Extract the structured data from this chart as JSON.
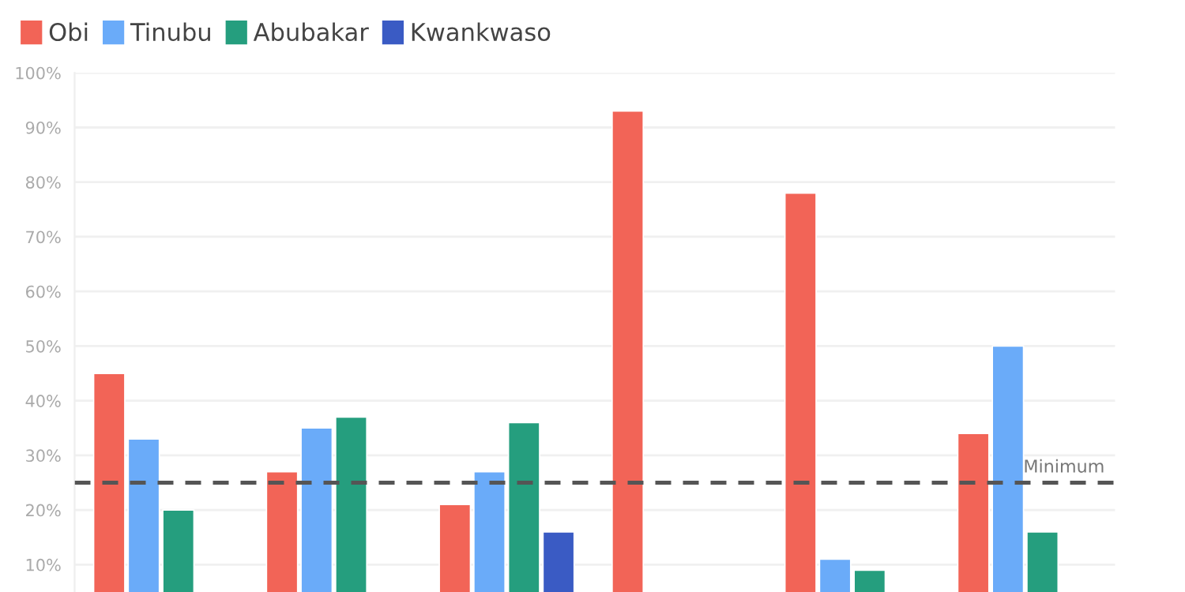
{
  "chart_data": {
    "type": "bar",
    "categories": [
      null,
      null,
      null,
      null,
      null,
      null
    ],
    "series": [
      {
        "name": "Obi",
        "color": "#f26457",
        "values": [
          45,
          27,
          21,
          93,
          78,
          34
        ]
      },
      {
        "name": "Tinubu",
        "color": "#6aabf9",
        "values": [
          33,
          35,
          27,
          null,
          11,
          50
        ]
      },
      {
        "name": "Abubakar",
        "color": "#259e7e",
        "values": [
          20,
          37,
          36,
          null,
          9,
          16
        ]
      },
      {
        "name": "Kwankwaso",
        "color": "#3a5bc4",
        "values": [
          null,
          null,
          16,
          null,
          null,
          null
        ]
      }
    ],
    "ylim": [
      5,
      100
    ],
    "yticks": [
      {
        "value": 10,
        "label": "10%"
      },
      {
        "value": 20,
        "label": "20%"
      },
      {
        "value": 30,
        "label": "30%"
      },
      {
        "value": 40,
        "label": "40%"
      },
      {
        "value": 50,
        "label": "50%"
      },
      {
        "value": 60,
        "label": "60%"
      },
      {
        "value": 70,
        "label": "70%"
      },
      {
        "value": 80,
        "label": "80%"
      },
      {
        "value": 90,
        "label": "90%"
      },
      {
        "value": 100,
        "label": "100%"
      }
    ],
    "ref_lines": [
      {
        "axis": "y",
        "value": 25,
        "label": "Minimum",
        "color": "#555555",
        "line_style": "dashed"
      }
    ],
    "grid": "y",
    "legend": "top left",
    "tick_labels": "y"
  }
}
